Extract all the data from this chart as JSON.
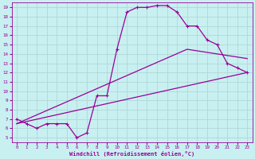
{
  "xlabel": "Windchill (Refroidissement éolien,°C)",
  "bg_color": "#c8f0f0",
  "grid_color": "#b0d8d8",
  "line_color": "#990099",
  "xlim": [
    -0.5,
    23.5
  ],
  "ylim": [
    4.5,
    19.5
  ],
  "xticks": [
    0,
    1,
    2,
    3,
    4,
    5,
    6,
    7,
    8,
    9,
    10,
    11,
    12,
    13,
    14,
    15,
    16,
    17,
    18,
    19,
    20,
    21,
    22,
    23
  ],
  "yticks": [
    5,
    6,
    7,
    8,
    9,
    10,
    11,
    12,
    13,
    14,
    15,
    16,
    17,
    18,
    19
  ],
  "line1_x": [
    0,
    1,
    2,
    3,
    4,
    5,
    6,
    7,
    8,
    9,
    10,
    11,
    12,
    13,
    14,
    15,
    16,
    17,
    18,
    19,
    20,
    21,
    22,
    23
  ],
  "line1_y": [
    7.0,
    6.5,
    6.0,
    6.5,
    6.5,
    6.5,
    5.0,
    5.5,
    9.5,
    9.5,
    14.5,
    18.5,
    19.0,
    19.0,
    19.2,
    19.2,
    18.5,
    17.0,
    17.0,
    15.5,
    15.0,
    13.0,
    12.5,
    12.0
  ],
  "line2_x": [
    0,
    23
  ],
  "line2_y": [
    6.5,
    12.0
  ],
  "line3_x": [
    0,
    17,
    23
  ],
  "line3_y": [
    6.5,
    14.5,
    13.5
  ]
}
